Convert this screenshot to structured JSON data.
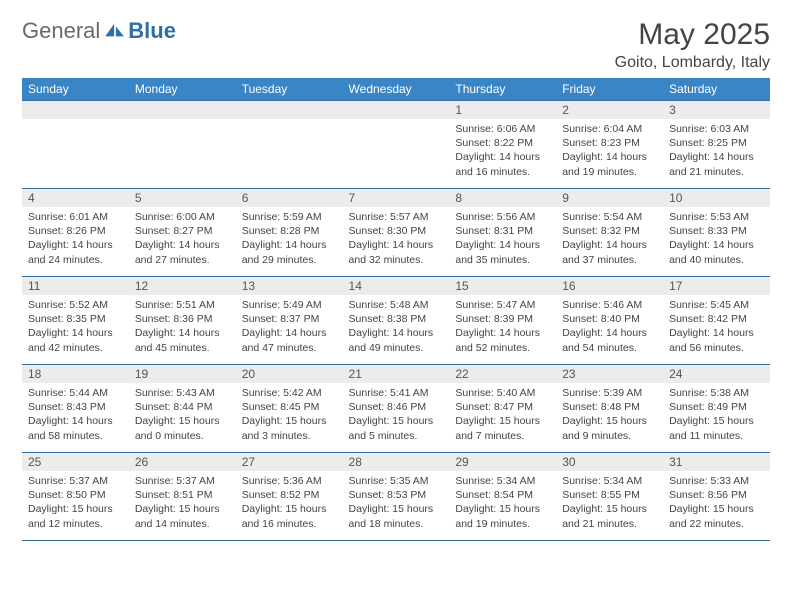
{
  "brand": {
    "general": "General",
    "blue": "Blue"
  },
  "title": "May 2025",
  "location": "Goito, Lombardy, Italy",
  "colors": {
    "header_bg": "#3a85c6",
    "header_text": "#ffffff",
    "border": "#2f6fa8",
    "daynum_bg": "#ececec",
    "text": "#444444",
    "logo_gray": "#6a6a6a",
    "logo_blue": "#2f6fa8"
  },
  "weekdays": [
    "Sunday",
    "Monday",
    "Tuesday",
    "Wednesday",
    "Thursday",
    "Friday",
    "Saturday"
  ],
  "weeks": [
    [
      null,
      null,
      null,
      null,
      {
        "n": "1",
        "sr": "6:06 AM",
        "ss": "8:22 PM",
        "dl": "14 hours and 16 minutes."
      },
      {
        "n": "2",
        "sr": "6:04 AM",
        "ss": "8:23 PM",
        "dl": "14 hours and 19 minutes."
      },
      {
        "n": "3",
        "sr": "6:03 AM",
        "ss": "8:25 PM",
        "dl": "14 hours and 21 minutes."
      }
    ],
    [
      {
        "n": "4",
        "sr": "6:01 AM",
        "ss": "8:26 PM",
        "dl": "14 hours and 24 minutes."
      },
      {
        "n": "5",
        "sr": "6:00 AM",
        "ss": "8:27 PM",
        "dl": "14 hours and 27 minutes."
      },
      {
        "n": "6",
        "sr": "5:59 AM",
        "ss": "8:28 PM",
        "dl": "14 hours and 29 minutes."
      },
      {
        "n": "7",
        "sr": "5:57 AM",
        "ss": "8:30 PM",
        "dl": "14 hours and 32 minutes."
      },
      {
        "n": "8",
        "sr": "5:56 AM",
        "ss": "8:31 PM",
        "dl": "14 hours and 35 minutes."
      },
      {
        "n": "9",
        "sr": "5:54 AM",
        "ss": "8:32 PM",
        "dl": "14 hours and 37 minutes."
      },
      {
        "n": "10",
        "sr": "5:53 AM",
        "ss": "8:33 PM",
        "dl": "14 hours and 40 minutes."
      }
    ],
    [
      {
        "n": "11",
        "sr": "5:52 AM",
        "ss": "8:35 PM",
        "dl": "14 hours and 42 minutes."
      },
      {
        "n": "12",
        "sr": "5:51 AM",
        "ss": "8:36 PM",
        "dl": "14 hours and 45 minutes."
      },
      {
        "n": "13",
        "sr": "5:49 AM",
        "ss": "8:37 PM",
        "dl": "14 hours and 47 minutes."
      },
      {
        "n": "14",
        "sr": "5:48 AM",
        "ss": "8:38 PM",
        "dl": "14 hours and 49 minutes."
      },
      {
        "n": "15",
        "sr": "5:47 AM",
        "ss": "8:39 PM",
        "dl": "14 hours and 52 minutes."
      },
      {
        "n": "16",
        "sr": "5:46 AM",
        "ss": "8:40 PM",
        "dl": "14 hours and 54 minutes."
      },
      {
        "n": "17",
        "sr": "5:45 AM",
        "ss": "8:42 PM",
        "dl": "14 hours and 56 minutes."
      }
    ],
    [
      {
        "n": "18",
        "sr": "5:44 AM",
        "ss": "8:43 PM",
        "dl": "14 hours and 58 minutes."
      },
      {
        "n": "19",
        "sr": "5:43 AM",
        "ss": "8:44 PM",
        "dl": "15 hours and 0 minutes."
      },
      {
        "n": "20",
        "sr": "5:42 AM",
        "ss": "8:45 PM",
        "dl": "15 hours and 3 minutes."
      },
      {
        "n": "21",
        "sr": "5:41 AM",
        "ss": "8:46 PM",
        "dl": "15 hours and 5 minutes."
      },
      {
        "n": "22",
        "sr": "5:40 AM",
        "ss": "8:47 PM",
        "dl": "15 hours and 7 minutes."
      },
      {
        "n": "23",
        "sr": "5:39 AM",
        "ss": "8:48 PM",
        "dl": "15 hours and 9 minutes."
      },
      {
        "n": "24",
        "sr": "5:38 AM",
        "ss": "8:49 PM",
        "dl": "15 hours and 11 minutes."
      }
    ],
    [
      {
        "n": "25",
        "sr": "5:37 AM",
        "ss": "8:50 PM",
        "dl": "15 hours and 12 minutes."
      },
      {
        "n": "26",
        "sr": "5:37 AM",
        "ss": "8:51 PM",
        "dl": "15 hours and 14 minutes."
      },
      {
        "n": "27",
        "sr": "5:36 AM",
        "ss": "8:52 PM",
        "dl": "15 hours and 16 minutes."
      },
      {
        "n": "28",
        "sr": "5:35 AM",
        "ss": "8:53 PM",
        "dl": "15 hours and 18 minutes."
      },
      {
        "n": "29",
        "sr": "5:34 AM",
        "ss": "8:54 PM",
        "dl": "15 hours and 19 minutes."
      },
      {
        "n": "30",
        "sr": "5:34 AM",
        "ss": "8:55 PM",
        "dl": "15 hours and 21 minutes."
      },
      {
        "n": "31",
        "sr": "5:33 AM",
        "ss": "8:56 PM",
        "dl": "15 hours and 22 minutes."
      }
    ]
  ],
  "labels": {
    "sunrise": "Sunrise:",
    "sunset": "Sunset:",
    "daylight": "Daylight:"
  }
}
